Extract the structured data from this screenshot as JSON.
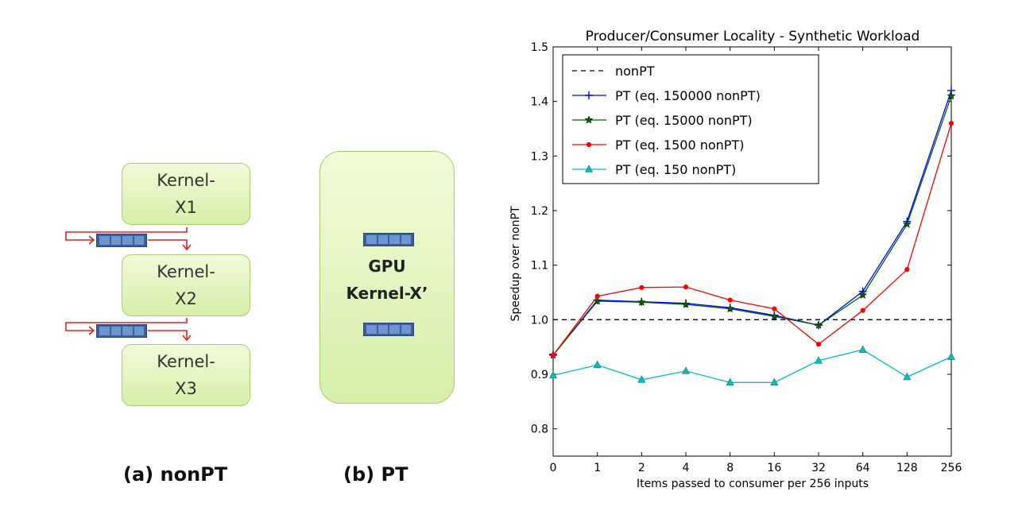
{
  "diagram": {
    "kernels": [
      "Kernel-\nX1",
      "Kernel-\nX2",
      "Kernel-\nX3"
    ],
    "gpu_label": "GPU\nKernel-X’",
    "caption_a": "(a) nonPT",
    "caption_b": "(b) PT",
    "colors": {
      "box_fill": "#e4f5c1",
      "box_border": "#a9cf6c",
      "queue": "#3a5f9c",
      "arrow": "#e02020"
    }
  },
  "chart_data": {
    "type": "line",
    "title": "Producer/Consumer Locality - Synthetic Workload",
    "xlabel": "Items passed to consumer per 256 inputs",
    "ylabel": "Speedup over nonPT",
    "categories": [
      "0",
      "1",
      "2",
      "4",
      "8",
      "16",
      "32",
      "64",
      "128",
      "256"
    ],
    "ylim": [
      0.75,
      1.5
    ],
    "yticks": [
      "0.8",
      "0.9",
      "1.0",
      "1.1",
      "1.2",
      "1.3",
      "1.4",
      "1.5"
    ],
    "legend_position": "top-left",
    "series": [
      {
        "name": "nonPT",
        "color": "#000000",
        "style": "dashed",
        "marker": "none",
        "values": [
          1.0,
          1.0,
          1.0,
          1.0,
          1.0,
          1.0,
          1.0,
          1.0,
          1.0,
          1.0
        ]
      },
      {
        "name": "PT (eq. 150000 nonPT)",
        "color": "#0000ff",
        "style": "solid",
        "marker": "plus",
        "values": [
          0.935,
          1.036,
          1.033,
          1.03,
          1.022,
          1.008,
          0.99,
          1.052,
          1.18,
          1.42
        ]
      },
      {
        "name": "PT (eq. 15000 nonPT)",
        "color": "#006400",
        "style": "solid",
        "marker": "star",
        "values": [
          0.935,
          1.034,
          1.032,
          1.028,
          1.02,
          1.006,
          0.99,
          1.045,
          1.175,
          1.41
        ]
      },
      {
        "name": "PT (eq. 1500 nonPT)",
        "color": "#ff0000",
        "style": "solid",
        "marker": "dot",
        "values": [
          0.935,
          1.043,
          1.059,
          1.06,
          1.036,
          1.02,
          0.955,
          1.017,
          1.092,
          1.36
        ]
      },
      {
        "name": "PT (eq. 150 nonPT)",
        "color": "#00bfbf",
        "style": "solid",
        "marker": "triangle",
        "values": [
          0.898,
          0.917,
          0.89,
          0.906,
          0.885,
          0.885,
          0.925,
          0.945,
          0.895,
          0.932
        ]
      }
    ]
  }
}
